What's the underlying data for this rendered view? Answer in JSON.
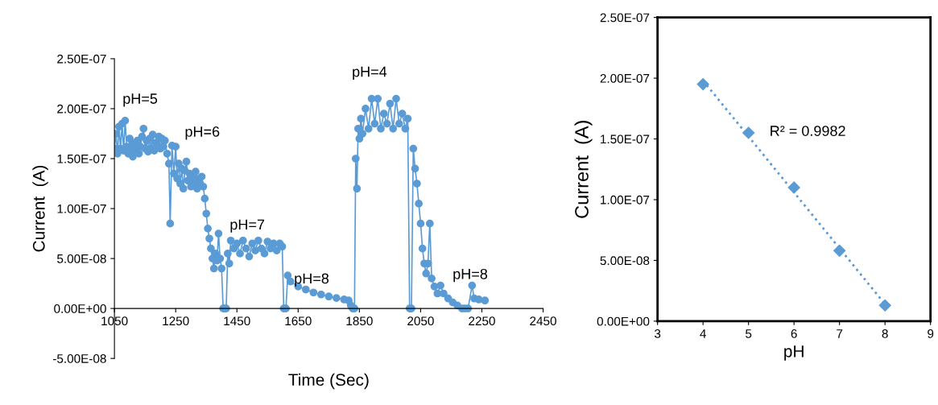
{
  "chart_data": [
    {
      "type": "line",
      "xlabel": "Time (Sec)",
      "ylabel": "Current  (A)",
      "marker": "circle",
      "line_style": "solid",
      "grid": false,
      "xlim": [
        1050,
        2450
      ],
      "xticks": [
        1050,
        1250,
        1450,
        1650,
        1850,
        2050,
        2250,
        2450
      ],
      "ylim": [
        -5e-08,
        2.5e-07
      ],
      "yticks": [
        {
          "value": -5e-08,
          "label": "-5.00E-08"
        },
        {
          "value": 0,
          "label": "0.00E+00"
        },
        {
          "value": 5e-08,
          "label": "5.00E-08"
        },
        {
          "value": 1e-07,
          "label": "1.00E-07"
        },
        {
          "value": 1.5e-07,
          "label": "1.50E-07"
        },
        {
          "value": 2e-07,
          "label": "2.00E-07"
        },
        {
          "value": 2.5e-07,
          "label": "2.50E-07"
        }
      ],
      "series": [
        {
          "color": "#5b9bd5",
          "x": [
            1050,
            1055,
            1060,
            1065,
            1070,
            1075,
            1080,
            1085,
            1090,
            1095,
            1100,
            1105,
            1110,
            1115,
            1120,
            1125,
            1130,
            1135,
            1140,
            1145,
            1150,
            1155,
            1160,
            1165,
            1170,
            1175,
            1180,
            1185,
            1190,
            1195,
            1200,
            1205,
            1210,
            1215,
            1222,
            1228,
            1232,
            1238,
            1244,
            1250,
            1255,
            1260,
            1265,
            1270,
            1275,
            1280,
            1285,
            1290,
            1295,
            1300,
            1305,
            1310,
            1315,
            1320,
            1325,
            1330,
            1335,
            1340,
            1345,
            1350,
            1355,
            1360,
            1365,
            1370,
            1375,
            1380,
            1385,
            1390,
            1395,
            1400,
            1405,
            1410,
            1415,
            1420,
            1425,
            1430,
            1440,
            1450,
            1460,
            1470,
            1480,
            1490,
            1500,
            1510,
            1520,
            1530,
            1540,
            1550,
            1560,
            1570,
            1580,
            1590,
            1598,
            1603,
            1610,
            1616,
            1625,
            1650,
            1675,
            1700,
            1725,
            1750,
            1775,
            1800,
            1815,
            1822,
            1828,
            1834,
            1838,
            1842,
            1846,
            1850,
            1855,
            1860,
            1870,
            1880,
            1890,
            1900,
            1910,
            1920,
            1930,
            1940,
            1950,
            1960,
            1970,
            1980,
            1990,
            2000,
            2008,
            2014,
            2020,
            2026,
            2032,
            2038,
            2044,
            2050,
            2056,
            2062,
            2068,
            2074,
            2080,
            2086,
            2095,
            2105,
            2115,
            2125,
            2140,
            2155,
            2170,
            2185,
            2195,
            2205,
            2218,
            2225,
            2240,
            2260
          ],
          "values": [
            1.6e-07,
            1.75e-07,
            1.55e-07,
            1.82e-07,
            1.6e-07,
            1.85e-07,
            1.58e-07,
            1.88e-07,
            1.62e-07,
            1.55e-07,
            1.7e-07,
            1.6e-07,
            1.52e-07,
            1.65e-07,
            1.58e-07,
            1.68e-07,
            1.55e-07,
            1.62e-07,
            1.72e-07,
            1.8e-07,
            1.6e-07,
            1.68e-07,
            1.57e-07,
            1.7e-07,
            1.6e-07,
            1.74e-07,
            1.58e-07,
            1.66e-07,
            1.62e-07,
            1.72e-07,
            1.6e-07,
            1.7e-07,
            1.62e-07,
            1.68e-07,
            1.55e-07,
            1.45e-07,
            8.5e-08,
            1.63e-07,
            1.35e-07,
            1.62e-07,
            1.3e-07,
            1.45e-07,
            1.25e-07,
            1.4e-07,
            1.2e-07,
            1.38e-07,
            1.47e-07,
            1.28e-07,
            1.35e-07,
            1.22e-07,
            1.33e-07,
            1.25e-07,
            1.37e-07,
            1.2e-07,
            1.3e-07,
            1.25e-07,
            1.32e-07,
            1.22e-07,
            1.1e-07,
            9.5e-08,
            8e-08,
            7e-08,
            6e-08,
            5e-08,
            4e-08,
            5.5e-08,
            4.8e-08,
            7.5e-08,
            5e-08,
            4e-08,
            0,
            0,
            0,
            5.5e-08,
            4.5e-08,
            6.8e-08,
            6e-08,
            6.5e-08,
            5.5e-08,
            6.8e-08,
            6e-08,
            5.2e-08,
            6.5e-08,
            5.8e-08,
            6.8e-08,
            6e-08,
            5.5e-08,
            6.7e-08,
            6e-08,
            6.5e-08,
            5.8e-08,
            6.5e-08,
            6.2e-08,
            0,
            0,
            3.3e-08,
            2.7e-08,
            2.2e-08,
            1.9e-08,
            1.6e-08,
            1.4e-08,
            1.2e-08,
            1.05e-08,
            9e-09,
            8e-09,
            3e-09,
            0,
            0,
            1.5e-07,
            1.2e-07,
            1.8e-07,
            1.7e-07,
            1.9e-07,
            1.75e-07,
            2e-07,
            1.8e-07,
            2.1e-07,
            1.85e-07,
            2.1e-07,
            1.8e-07,
            1.95e-07,
            1.85e-07,
            2.05e-07,
            1.8e-07,
            2.1e-07,
            1.85e-07,
            1.95e-07,
            1.8e-07,
            1.9e-07,
            0,
            0,
            1.6e-07,
            1.4e-07,
            1.25e-07,
            1.05e-07,
            8.5e-08,
            6e-08,
            4.5e-08,
            3.5e-08,
            4.5e-08,
            8.5e-08,
            3e-08,
            2.2e-08,
            1.5e-08,
            2.3e-08,
            1.5e-08,
            1e-08,
            6e-09,
            3e-09,
            0,
            0,
            0,
            2.3e-08,
            1e-08,
            9e-09,
            8e-09
          ]
        }
      ],
      "annotations": [
        "pH=5",
        "pH=6",
        "pH=7",
        "pH=8",
        "pH=4",
        "pH=8"
      ]
    },
    {
      "type": "scatter",
      "xlabel": "pH",
      "ylabel": "Current  (A)",
      "marker": "diamond",
      "grid": false,
      "xlim": [
        3,
        9
      ],
      "xticks": [
        3,
        4,
        5,
        6,
        7,
        8,
        9
      ],
      "ylim": [
        0,
        2.5e-07
      ],
      "yticks": [
        {
          "value": 0,
          "label": "0.00E+00"
        },
        {
          "value": 5e-08,
          "label": "5.00E-08"
        },
        {
          "value": 1e-07,
          "label": "1.00E-07"
        },
        {
          "value": 1.5e-07,
          "label": "1.50E-07"
        },
        {
          "value": 2e-07,
          "label": "2.00E-07"
        },
        {
          "value": 2.5e-07,
          "label": "2.50E-07"
        }
      ],
      "series": [
        {
          "color": "#5b9bd5",
          "x": [
            4,
            5,
            6,
            7,
            8
          ],
          "values": [
            1.95e-07,
            1.55e-07,
            1.1e-07,
            5.8e-08,
            1.3e-08
          ]
        },
        {
          "type": "line",
          "color": "#5b9bd5",
          "line_style": "dotted",
          "marker": "none",
          "x": [
            4,
            8
          ],
          "values": [
            1.98e-07,
            1.4e-08
          ]
        }
      ],
      "annotations": [
        "R² = 0.9982"
      ]
    }
  ]
}
